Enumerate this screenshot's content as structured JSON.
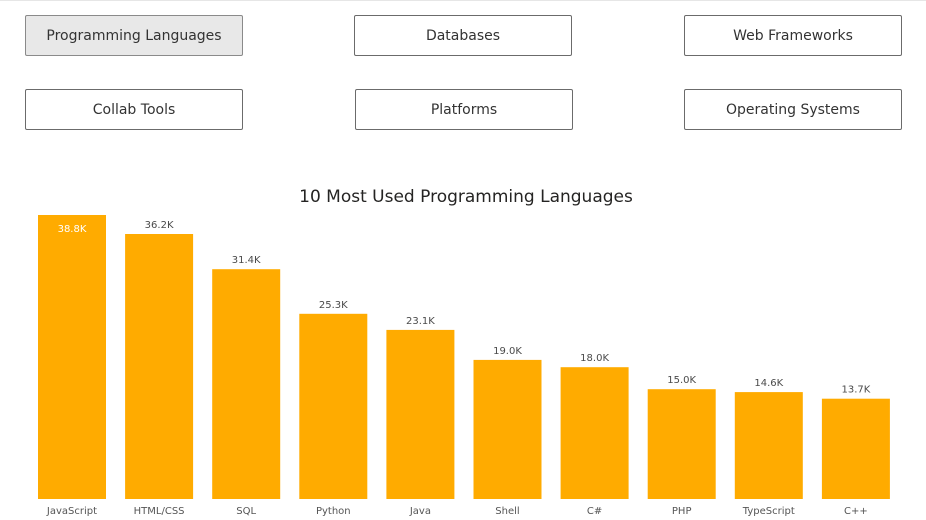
{
  "nav": {
    "buttons": [
      {
        "label": "Programming Languages",
        "active": true
      },
      {
        "label": "Databases",
        "active": false
      },
      {
        "label": "Web Frameworks",
        "active": false
      },
      {
        "label": "Collab Tools",
        "active": false
      },
      {
        "label": "Platforms",
        "active": false
      },
      {
        "label": "Operating Systems",
        "active": false
      }
    ]
  },
  "colors": {
    "bar": "#FFAB00",
    "label_dark": "#4a4a4a",
    "label_light": "#ffffff"
  },
  "chart_data": {
    "type": "bar",
    "title": "10 Most Used Programming Languages",
    "xlabel": "",
    "ylabel": "",
    "categories": [
      "JavaScript",
      "HTML/CSS",
      "SQL",
      "Python",
      "Java",
      "Shell",
      "C#",
      "PHP",
      "TypeScript",
      "C++"
    ],
    "values": [
      38800,
      36200,
      31400,
      25300,
      23100,
      19000,
      18000,
      15000,
      14600,
      13700
    ],
    "data_labels": [
      "38.8K",
      "36.2K",
      "31.4K",
      "25.3K",
      "23.1K",
      "19.0K",
      "18.0K",
      "15.0K",
      "14.6K",
      "13.7K"
    ],
    "ylim": [
      0,
      38800
    ],
    "grid": false,
    "legend": "none"
  }
}
